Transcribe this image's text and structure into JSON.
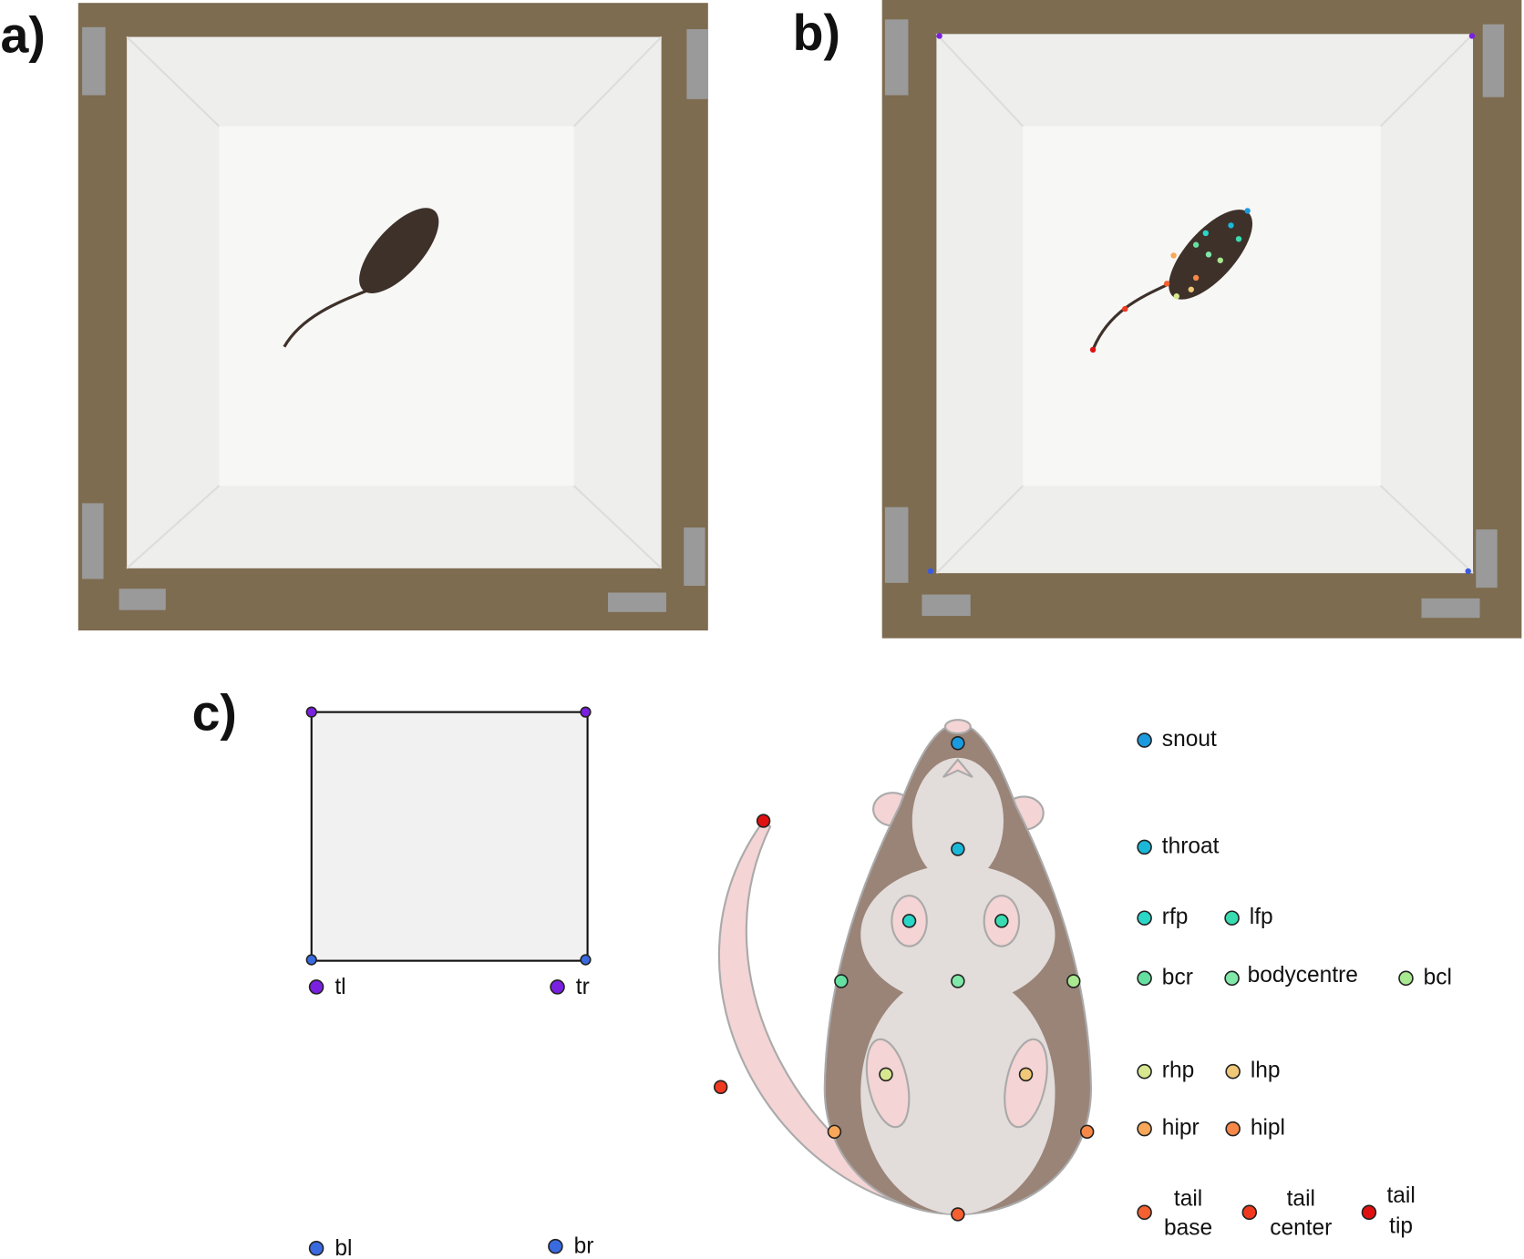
{
  "panels": {
    "a": "a)",
    "b": "b)",
    "c": "c)"
  },
  "corners": [
    {
      "label": "tl"
    },
    {
      "label": "tr"
    },
    {
      "label": "bl"
    },
    {
      "label": "br"
    }
  ],
  "keypoints": [
    {
      "label": "snout"
    },
    {
      "label": "throat"
    },
    {
      "label": "rfp"
    },
    {
      "label": "lfp"
    },
    {
      "label": "bcr"
    },
    {
      "label": "bodycentre"
    },
    {
      "label": "bcl"
    },
    {
      "label": "rhp"
    },
    {
      "label": "lhp"
    },
    {
      "label": "hipr"
    },
    {
      "label": "hipl"
    },
    {
      "label": [
        "tail",
        "base"
      ]
    },
    {
      "label": [
        "tail",
        "center"
      ]
    },
    {
      "label": [
        "tail",
        "tip"
      ]
    }
  ]
}
